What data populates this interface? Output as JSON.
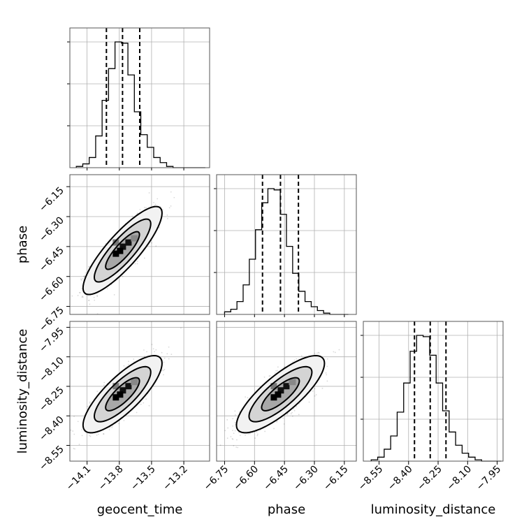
{
  "chart_data": {
    "type": "corner",
    "parameters": [
      "geocent_time",
      "phase",
      "luminosity_distance"
    ],
    "labels": {
      "x_bottom": [
        "geocent_time",
        "phase",
        "luminosity_distance"
      ],
      "y_left": [
        "phase",
        "luminosity_distance"
      ]
    },
    "ranges": {
      "geocent_time": [
        -14.26,
        -12.96
      ],
      "phase": [
        -6.79,
        -6.09
      ],
      "luminosity_distance": [
        -8.63,
        -7.92
      ]
    },
    "ticks": {
      "geocent_time": {
        "values": [
          -14.1,
          -13.8,
          -13.5,
          -13.2
        ],
        "labels": [
          "−14.1",
          "−13.8",
          "−13.5",
          "−13.2"
        ]
      },
      "phase": {
        "values": [
          -6.75,
          -6.6,
          -6.45,
          -6.3,
          -6.15
        ],
        "labels": [
          "−6.75",
          "−6.60",
          "−6.45",
          "−6.30",
          "−6.15"
        ]
      },
      "luminosity_distance": {
        "values": [
          -8.55,
          -8.4,
          -8.25,
          -8.1,
          -7.95
        ],
        "labels": [
          "−8.55",
          "−8.40",
          "−8.25",
          "−8.10",
          "−7.95"
        ]
      }
    },
    "quantiles": {
      "geocent_time": [
        -13.92,
        -13.77,
        -13.61
      ],
      "phase": [
        -6.56,
        -6.47,
        -6.38
      ],
      "luminosity_distance": [
        -8.37,
        -8.29,
        -8.21
      ]
    },
    "histograms": {
      "geocent_time": {
        "edges_range": [
          -14.2,
          -13.0
        ],
        "bins": 20,
        "counts": [
          1,
          3,
          8,
          25,
          53,
          78,
          99,
          98,
          73,
          44,
          26,
          16,
          8,
          4,
          1,
          0,
          0,
          0,
          0,
          0
        ]
      },
      "phase": {
        "edges_range": [
          -6.75,
          -6.13
        ],
        "bins": 20,
        "counts": [
          2,
          4,
          10,
          23,
          43,
          66,
          87,
          98,
          97,
          78,
          53,
          32,
          18,
          10,
          6,
          3,
          1,
          0,
          0,
          0
        ]
      },
      "luminosity_distance": {
        "edges_range": [
          -8.59,
          -7.93
        ],
        "bins": 20,
        "counts": [
          1,
          3,
          9,
          19,
          37,
          59,
          83,
          95,
          94,
          80,
          59,
          38,
          22,
          12,
          6,
          3,
          1,
          0,
          0,
          0
        ]
      }
    },
    "joint": [
      {
        "x": "geocent_time",
        "y": "phase",
        "mean": [
          -13.77,
          -6.47
        ],
        "sd": [
          0.15,
          0.09
        ],
        "rho": 0.85
      },
      {
        "x": "geocent_time",
        "y": "luminosity_distance",
        "mean": [
          -13.77,
          -8.29
        ],
        "sd": [
          0.15,
          0.08
        ],
        "rho": 0.8
      },
      {
        "x": "phase",
        "y": "luminosity_distance",
        "mean": [
          -6.47,
          -8.29
        ],
        "sd": [
          0.09,
          0.08
        ],
        "rho": 0.8
      }
    ],
    "grid": true
  }
}
